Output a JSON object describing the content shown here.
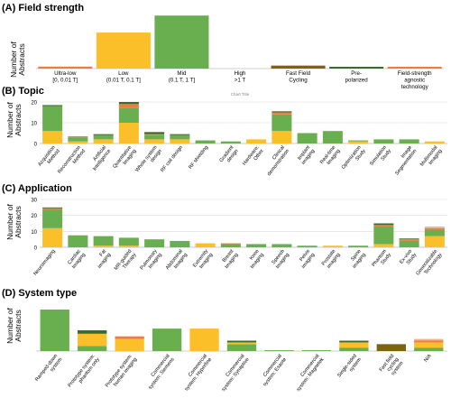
{
  "colors": {
    "orange": "#ec7c43",
    "yellow": "#fbbf2a",
    "green": "#6aaf4f",
    "darkgreen": "#3b6b2a",
    "olive": "#7e6410",
    "brown": "#8a5a1c",
    "peach": "#f4b183",
    "grid": "#d9d9d9",
    "axis": "#bfbfbf"
  },
  "chart_data": [
    {
      "type": "bar",
      "title": "(A) Field strength",
      "ylabel": "Number of Abstracts",
      "stacked": false,
      "grid": false,
      "ylim": [
        0,
        55
      ],
      "inner_caption": "Chart Title",
      "categories": [
        [
          "Ultra-low",
          "[0, 0.01 T]"
        ],
        [
          "Low",
          "(0.01 T, 0.1 T]"
        ],
        [
          "Mid",
          "(0.1 T, 1 T]"
        ],
        [
          "High",
          ">1 T"
        ],
        [
          "Fast Field",
          "Cycling"
        ],
        [
          "Pre-",
          "polarized"
        ],
        [
          "Field-strength",
          "agnostic",
          "technology"
        ]
      ],
      "values": [
        2,
        36,
        53,
        0,
        3,
        1,
        1
      ],
      "bar_colors": [
        "orange",
        "yellow",
        "green",
        "green",
        "olive",
        "darkgreen",
        "orange"
      ]
    },
    {
      "type": "bar",
      "title": "(B) Topic",
      "ylabel": "Number of Abstracts",
      "stacked": true,
      "grid": true,
      "ylim": [
        0,
        20
      ],
      "yticks": [
        0,
        10,
        20
      ],
      "categories": [
        [
          "Acquisition",
          "Method"
        ],
        [
          "Reconstruction",
          "Method"
        ],
        [
          "Artificial",
          "Intelligence"
        ],
        [
          "Quantitative",
          "Imaging"
        ],
        [
          "Whole system",
          "design"
        ],
        [
          "RF coil design"
        ],
        [
          "RF shielding"
        ],
        [
          "Gradient",
          "design"
        ],
        [
          "Hardware:",
          "Other"
        ],
        [
          "Clinical",
          "demonstration"
        ],
        [
          "Implant",
          "imaging"
        ],
        [
          "Real-time",
          "Imaging"
        ],
        [
          "Optimization",
          "Study"
        ],
        [
          "Simulation",
          "Study"
        ],
        [
          "Image",
          "Segmentation"
        ],
        [
          "Multimodal",
          "Imaging"
        ]
      ],
      "series": [
        {
          "color": "yellow",
          "values": [
            6,
            1,
            2,
            10,
            2,
            2,
            0,
            0,
            2,
            6,
            0,
            0,
            1,
            0,
            0,
            1
          ]
        },
        {
          "color": "green",
          "values": [
            12,
            2,
            2,
            7,
            2,
            2,
            1.5,
            1,
            0,
            8,
            5,
            6,
            0.5,
            2,
            2,
            0
          ]
        },
        {
          "color": "orange",
          "values": [
            0,
            0.5,
            0,
            2,
            0.5,
            0,
            0,
            0,
            0,
            1,
            0,
            0,
            0,
            0,
            0,
            0
          ]
        },
        {
          "color": "darkgreen",
          "values": [
            0.5,
            0,
            0.5,
            1,
            1,
            0.5,
            0,
            0,
            0,
            0.5,
            0,
            0,
            0,
            0,
            0,
            0
          ]
        }
      ]
    },
    {
      "type": "bar",
      "title": "(C) Application",
      "ylabel": "Number of Abstracts",
      "stacked": true,
      "grid": true,
      "ylim": [
        0,
        30
      ],
      "yticks": [
        0,
        10,
        20,
        30
      ],
      "categories": [
        [
          "Neuroimaging"
        ],
        [
          "Cardiac",
          "Imaging"
        ],
        [
          "Fat",
          "imaging"
        ],
        [
          "MR-guided",
          "Therapy"
        ],
        [
          "Pulmonary",
          "Imaging"
        ],
        [
          "Abdominal",
          "Imaging"
        ],
        [
          "Extremity",
          "Imaging"
        ],
        [
          "Breast",
          "Imaging"
        ],
        [
          "Knee",
          "Imaging"
        ],
        [
          "Speech",
          "Imaging"
        ],
        [
          "Pelvis",
          "imaging"
        ],
        [
          "Prostate",
          "imaging"
        ],
        [
          "Spine",
          "imaging"
        ],
        [
          "Phantom",
          "Study"
        ],
        [
          "Ex-vivo",
          "Study"
        ],
        [
          "Generalizable",
          "Technology"
        ]
      ],
      "series": [
        {
          "color": "yellow",
          "values": [
            12,
            0,
            1,
            1,
            0,
            0,
            2.5,
            0,
            0,
            0,
            0,
            1,
            0,
            2,
            0,
            7
          ]
        },
        {
          "color": "green",
          "values": [
            11.5,
            7.5,
            6,
            5,
            5,
            4,
            0,
            2,
            2,
            2,
            1,
            0,
            1,
            11,
            4,
            4
          ]
        },
        {
          "color": "orange",
          "values": [
            1,
            0,
            0,
            0,
            0,
            0,
            0,
            0.5,
            0,
            0,
            0,
            0,
            0,
            1,
            1,
            1
          ]
        },
        {
          "color": "darkgreen",
          "values": [
            0.5,
            0,
            0,
            0,
            0,
            0,
            0,
            0,
            0,
            0,
            0,
            0,
            0,
            1,
            0.5,
            0
          ]
        },
        {
          "color": "peach",
          "values": [
            0,
            0,
            0,
            0,
            0,
            0,
            0,
            0,
            0,
            0,
            0,
            0,
            0,
            0,
            0,
            1
          ]
        }
      ]
    },
    {
      "type": "bar",
      "title": "(D) System type",
      "ylabel": "Number of Abstracts",
      "stacked": true,
      "grid": false,
      "ylim": [
        0,
        24
      ],
      "categories": [
        [
          "Ramped-down",
          "system"
        ],
        [
          "Prototype system:",
          "phantom only"
        ],
        [
          "Prototype system:",
          "human imaging"
        ],
        [
          "Commercial",
          "system: Siemens"
        ],
        [
          "Commercial",
          "system: Hyperfine"
        ],
        [
          "Commercial",
          "system: Synaptive"
        ],
        [
          "Commercial",
          "system: Esaote"
        ],
        [
          "Commercial",
          "system: Magnetek"
        ],
        [
          "Single-sided",
          "system"
        ],
        [
          "Fast field",
          "cycling",
          "system"
        ],
        [
          "N/A"
        ]
      ],
      "series": [
        {
          "color": "green",
          "values": [
            24,
            3,
            0,
            13,
            0,
            4,
            0.5,
            0.5,
            2,
            0,
            2
          ]
        },
        {
          "color": "yellow",
          "values": [
            0,
            7,
            7,
            0,
            13,
            1,
            0,
            0,
            3,
            0,
            3
          ]
        },
        {
          "color": "orange",
          "values": [
            0,
            0,
            1.5,
            0,
            0,
            0,
            0,
            0,
            0,
            0,
            1
          ]
        },
        {
          "color": "olive",
          "values": [
            0,
            0,
            0,
            0,
            0,
            0,
            0,
            0,
            0,
            4,
            0
          ]
        },
        {
          "color": "darkgreen",
          "values": [
            0,
            2,
            0,
            0,
            0,
            1,
            0,
            0,
            1,
            0,
            0
          ]
        },
        {
          "color": "peach",
          "values": [
            0,
            0,
            0,
            0,
            0,
            0,
            0,
            0,
            0,
            0,
            1
          ]
        }
      ]
    }
  ]
}
